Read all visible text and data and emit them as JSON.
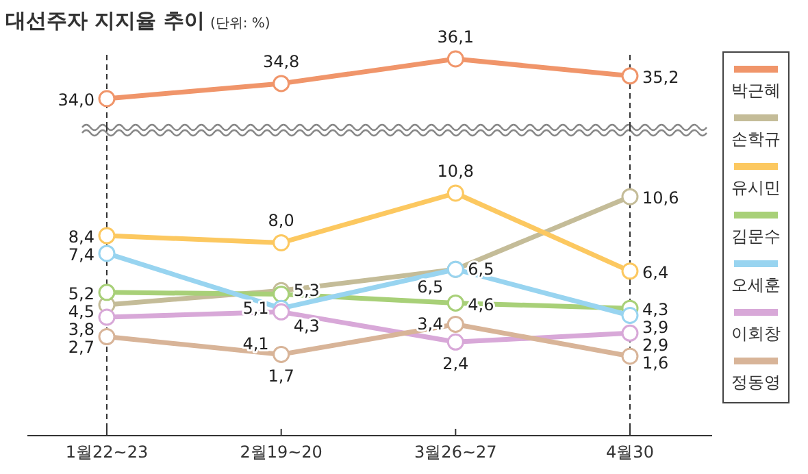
{
  "chart_data": [
    {
      "type": "line",
      "title": "대선주자 지지율 추이",
      "subtitle": "(단위: %)",
      "categories": [
        "1월22~23",
        "2월19~20",
        "3월26~27",
        "4월30"
      ],
      "tick_labels": false,
      "legend": "right",
      "marker": "circle",
      "line_style": "solid",
      "ref_lines": [
        {
          "axis": "x",
          "value": "1월22~23",
          "line_style": "dashed",
          "color": "#333333"
        },
        {
          "axis": "x",
          "value": "4월30",
          "line_style": "dashed",
          "color": "#333333"
        }
      ],
      "series": [
        {
          "name": "박근혜",
          "color": "#f0956a",
          "values": [
            34.0,
            34.8,
            36.1,
            35.2
          ],
          "value_labels": [
            "34,0",
            "34,8",
            "36,1",
            "35,2"
          ]
        }
      ]
    },
    {
      "type": "line",
      "categories": [
        "1월22~23",
        "2월19~20",
        "3월26~27",
        "4월30"
      ],
      "tick_labels": "x",
      "legend": "right",
      "marker": "circle",
      "line_style": "solid",
      "ref_lines": [
        {
          "axis": "x",
          "value": "1월22~23",
          "line_style": "dashed",
          "color": "#333333"
        },
        {
          "axis": "x",
          "value": "4월30",
          "line_style": "dashed",
          "color": "#333333"
        }
      ],
      "series": [
        {
          "name": "손학규",
          "color": "#c4bc98",
          "values": [
            4.5,
            5.3,
            6.5,
            10.6
          ],
          "value_labels": [
            "4,5",
            "5,3",
            "6,5",
            "10,6"
          ]
        },
        {
          "name": "유시민",
          "color": "#fcc860",
          "values": [
            8.4,
            8.0,
            10.8,
            6.4
          ],
          "value_labels": [
            "8,4",
            "8,0",
            "10,8",
            "6,4"
          ]
        },
        {
          "name": "김문수",
          "color": "#a8d078",
          "values": [
            5.2,
            5.1,
            4.6,
            4.3
          ],
          "value_labels": [
            "5,2",
            "5,1",
            "4,6",
            "4,3"
          ]
        },
        {
          "name": "오세훈",
          "color": "#98d4f0",
          "values": [
            7.4,
            4.3,
            6.5,
            3.9
          ],
          "value_labels": [
            "7,4",
            "4,3",
            "6,5",
            "3,9"
          ]
        },
        {
          "name": "이회창",
          "color": "#d8a8d8",
          "values": [
            3.8,
            4.1,
            2.4,
            2.9
          ],
          "value_labels": [
            "3,8",
            "4,1",
            "2,4",
            "2,9"
          ]
        },
        {
          "name": "정동영",
          "color": "#d8b498",
          "values": [
            2.7,
            1.7,
            3.4,
            1.6
          ],
          "value_labels": [
            "2,7",
            "1,7",
            "3,4",
            "1,6"
          ]
        }
      ]
    }
  ]
}
